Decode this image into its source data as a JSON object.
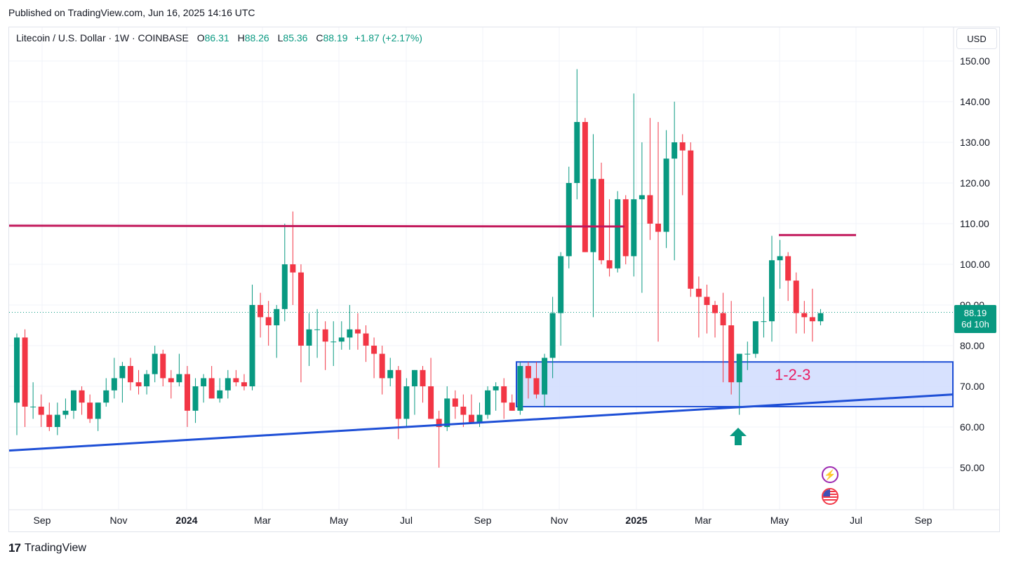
{
  "header": {
    "published": "Published on TradingView.com, Jun 16, 2025 14:16 UTC"
  },
  "legend": {
    "symbol": "Litecoin / U.S. Dollar · 1W · COINBASE",
    "open_label": "O",
    "open": "86.31",
    "high_label": "H",
    "high": "88.26",
    "low_label": "L",
    "low": "85.36",
    "close_label": "C",
    "close": "88.19",
    "change": "+1.87 (+2.17%)"
  },
  "currency_button": "USD",
  "last_price": {
    "price": "88.19",
    "countdown": "6d 10h"
  },
  "footer": {
    "logo_mark": "17",
    "brand": "TradingView"
  },
  "icons": {
    "bolt": "lightning-icon",
    "flag": "us-flag-icon"
  },
  "colors": {
    "up": "#089981",
    "down": "#f23645",
    "resistance": "#c2185b",
    "support": "#1e4fd6",
    "zone": "#d0dcfe",
    "annotation": "#e91e63"
  },
  "chart_data": {
    "type": "candlestick",
    "symbol": "LTCUSD",
    "interval": "1W",
    "exchange": "COINBASE",
    "y_ticks": [
      "50.00",
      "60.00",
      "70.00",
      "80.00",
      "90.00",
      "100.00",
      "110.00",
      "120.00",
      "130.00",
      "140.00",
      "150.00"
    ],
    "ylim": [
      40,
      160
    ],
    "x_ticks": [
      "Sep",
      "Nov",
      "2024",
      "Mar",
      "May",
      "Jul",
      "Sep",
      "Nov",
      "2025",
      "Mar",
      "May",
      "Jul",
      "Sep"
    ],
    "bold_x_ticks": [
      "2024",
      "2025"
    ],
    "candles": [
      [
        66,
        83,
        58,
        82
      ],
      [
        82,
        84,
        60,
        65
      ],
      [
        65,
        71,
        62,
        65
      ],
      [
        65,
        68,
        60,
        63
      ],
      [
        63,
        66,
        59,
        60
      ],
      [
        60,
        66,
        58,
        63
      ],
      [
        63,
        67,
        62,
        64
      ],
      [
        64,
        69,
        62,
        69
      ],
      [
        69,
        70,
        63,
        66
      ],
      [
        66,
        68,
        61,
        62
      ],
      [
        62,
        66,
        59,
        66
      ],
      [
        66,
        72,
        65,
        69
      ],
      [
        69,
        77,
        67,
        72
      ],
      [
        72,
        76,
        66,
        75
      ],
      [
        75,
        77,
        69,
        71
      ],
      [
        71,
        74,
        68,
        70
      ],
      [
        70,
        74,
        68,
        73
      ],
      [
        73,
        80,
        71,
        78
      ],
      [
        78,
        79,
        70,
        72
      ],
      [
        72,
        74,
        67,
        71
      ],
      [
        71,
        78,
        70,
        73
      ],
      [
        73,
        75,
        60,
        64
      ],
      [
        64,
        72,
        61,
        70
      ],
      [
        70,
        73,
        66,
        72
      ],
      [
        72,
        75,
        67,
        67
      ],
      [
        67,
        72,
        66,
        69
      ],
      [
        69,
        74,
        67,
        72
      ],
      [
        72,
        74,
        70,
        71
      ],
      [
        71,
        73,
        69,
        70
      ],
      [
        70,
        95,
        69,
        90
      ],
      [
        90,
        93,
        82,
        87
      ],
      [
        87,
        91,
        80,
        85
      ],
      [
        85,
        90,
        77,
        89
      ],
      [
        89,
        110,
        86,
        100
      ],
      [
        100,
        113,
        90,
        98
      ],
      [
        98,
        100,
        71,
        80
      ],
      [
        80,
        88,
        75,
        84
      ],
      [
        84,
        89,
        77,
        84
      ],
      [
        84,
        86,
        74,
        81
      ],
      [
        81,
        86,
        75,
        81
      ],
      [
        81,
        86,
        79,
        82
      ],
      [
        82,
        90,
        79,
        84
      ],
      [
        84,
        88,
        79,
        83
      ],
      [
        83,
        85,
        76,
        80
      ],
      [
        80,
        82,
        72,
        78
      ],
      [
        78,
        80,
        68,
        72
      ],
      [
        72,
        77,
        70,
        74
      ],
      [
        74,
        75,
        57,
        62
      ],
      [
        62,
        72,
        60,
        70
      ],
      [
        70,
        74,
        63,
        74
      ],
      [
        74,
        75,
        66,
        70
      ],
      [
        70,
        77,
        62,
        62
      ],
      [
        62,
        64,
        50,
        60
      ],
      [
        60,
        70,
        59,
        67
      ],
      [
        67,
        69,
        62,
        65
      ],
      [
        65,
        68,
        60,
        63
      ],
      [
        63,
        68,
        61,
        61
      ],
      [
        61,
        66,
        60,
        63
      ],
      [
        63,
        70,
        62,
        69
      ],
      [
        69,
        71,
        64,
        70
      ],
      [
        70,
        72,
        62,
        66
      ],
      [
        66,
        68,
        64,
        64
      ],
      [
        64,
        76,
        63,
        75
      ],
      [
        75,
        76,
        67,
        72
      ],
      [
        72,
        76,
        67,
        68
      ],
      [
        68,
        78,
        65,
        77
      ],
      [
        77,
        92,
        72,
        88
      ],
      [
        88,
        103,
        80,
        102
      ],
      [
        102,
        124,
        99,
        120
      ],
      [
        120,
        148,
        116,
        135
      ],
      [
        135,
        136,
        103,
        103
      ],
      [
        103,
        132,
        87,
        121
      ],
      [
        121,
        125,
        100,
        101
      ],
      [
        101,
        116,
        97,
        99
      ],
      [
        99,
        118,
        98,
        116
      ],
      [
        116,
        117,
        100,
        102
      ],
      [
        102,
        142,
        97,
        116
      ],
      [
        116,
        130,
        93,
        117
      ],
      [
        117,
        136,
        106,
        110
      ],
      [
        110,
        135,
        81,
        108
      ],
      [
        108,
        133,
        104,
        126
      ],
      [
        126,
        140,
        101,
        130
      ],
      [
        130,
        132,
        117,
        128
      ],
      [
        128,
        130,
        92,
        94
      ],
      [
        94,
        97,
        82,
        92
      ],
      [
        92,
        95,
        83,
        90
      ],
      [
        90,
        91,
        82,
        88
      ],
      [
        88,
        93,
        71,
        85
      ],
      [
        85,
        91,
        68,
        71
      ],
      [
        71,
        78,
        63,
        78
      ],
      [
        78,
        81,
        74,
        78
      ],
      [
        78,
        86,
        77,
        86
      ],
      [
        86,
        92,
        82,
        86
      ],
      [
        86,
        107,
        81,
        101
      ],
      [
        101,
        106,
        94,
        102
      ],
      [
        102,
        103,
        91,
        96
      ],
      [
        96,
        98,
        83,
        88
      ],
      [
        88,
        91,
        83,
        87
      ],
      [
        87,
        94,
        81,
        86
      ],
      [
        86,
        89,
        85,
        88
      ]
    ],
    "resistance_line": {
      "start": 109.5,
      "end": 109.3
    },
    "resistance_line_recent": 107.2,
    "support_zone": {
      "low": 65,
      "high": 76
    },
    "support_trendline": {
      "start": 54.2,
      "end": 68.0
    },
    "current_price_line": 88.19,
    "annotations": [
      "1-2-3"
    ],
    "grid": true
  }
}
